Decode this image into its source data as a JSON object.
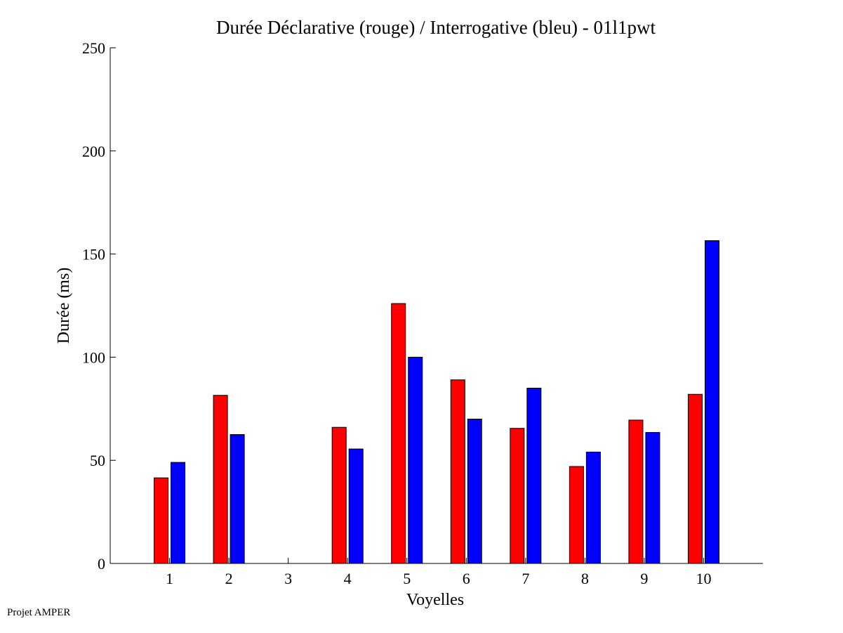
{
  "chart_data": {
    "type": "bar",
    "title": "Durée Déclarative (rouge) / Interrogative (bleu) - 01l1pwt",
    "xlabel": "Voyelles",
    "ylabel": "Durée (ms)",
    "categories": [
      "1",
      "2",
      "3",
      "4",
      "5",
      "6",
      "7",
      "8",
      "9",
      "10"
    ],
    "ylim": [
      0,
      250
    ],
    "yticks": [
      0,
      50,
      100,
      150,
      200,
      250
    ],
    "xlim": [
      0,
      11
    ],
    "grid": false,
    "series": [
      {
        "values": [
          41.5,
          81.5,
          0,
          66,
          126,
          89,
          65.5,
          47,
          69.5,
          82
        ],
        "color": "#ff0000"
      },
      {
        "values": [
          49,
          62.5,
          0,
          55.5,
          100,
          70,
          85,
          54,
          63.5,
          156.5
        ],
        "color": "#0000ff"
      }
    ]
  },
  "footer": {
    "text": "Projet AMPER"
  }
}
